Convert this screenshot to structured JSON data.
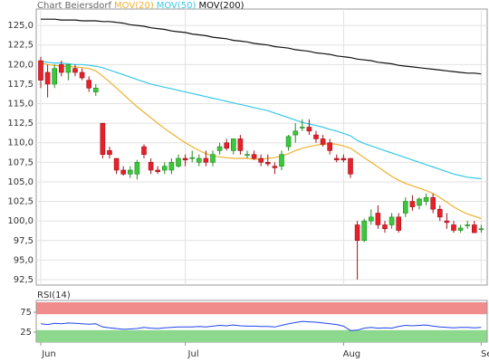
{
  "chart_data": [
    {
      "type": "candlestick",
      "title": "Chart Beiersdorf",
      "categories": [
        "Jun",
        null,
        null,
        null,
        null,
        null,
        null,
        null,
        null,
        null,
        null,
        null,
        null,
        null,
        null,
        null,
        null,
        null,
        null,
        null,
        null,
        "Jul",
        null,
        null,
        null,
        null,
        null,
        null,
        null,
        null,
        null,
        null,
        null,
        null,
        null,
        null,
        null,
        null,
        null,
        null,
        null,
        null,
        null,
        null,
        "Aug",
        null,
        null,
        null,
        null,
        null,
        null,
        null,
        null,
        null,
        null,
        null,
        null,
        null,
        null,
        null,
        null,
        null,
        null,
        null,
        "Sep"
      ],
      "open": [
        120.5,
        119,
        117.5,
        120,
        119,
        119.5,
        119,
        118,
        116.5,
        112.5,
        109,
        108,
        106.5,
        106,
        106,
        109.5,
        107.5,
        106.5,
        106.5,
        106.5,
        107,
        108,
        108,
        107.5,
        108,
        107.5,
        109,
        110,
        109,
        110.5,
        108.5,
        108.5,
        108,
        107.5,
        107,
        107,
        109.5,
        111,
        112,
        112,
        111,
        110.5,
        110,
        108,
        108,
        108,
        99.5,
        97.5,
        100,
        101,
        99.5,
        99.5,
        100.5,
        101,
        102.5,
        102,
        102.5,
        103,
        101.5,
        100,
        99.5,
        98.8,
        99.5,
        99.5,
        99
      ],
      "high": [
        121,
        120,
        120,
        120.5,
        120,
        120,
        119.5,
        118.5,
        117.5,
        112.5,
        109.5,
        108,
        107,
        107,
        107.8,
        109.8,
        108,
        107,
        107.5,
        108,
        108.5,
        108.5,
        109,
        108.5,
        109,
        109,
        110,
        110.5,
        110.5,
        111,
        109,
        109,
        108.5,
        108.5,
        107.5,
        109,
        111,
        112.5,
        113,
        113,
        111.5,
        111,
        110.5,
        108.5,
        108.5,
        108,
        100,
        100.3,
        101.5,
        102,
        100,
        101,
        101,
        103,
        103.3,
        103,
        103.5,
        103.5,
        102,
        101,
        100,
        99.5,
        100,
        100,
        99.5
      ],
      "low": [
        117,
        115.8,
        117,
        118.5,
        118,
        118.5,
        118,
        116.5,
        116,
        108,
        108,
        106,
        105.8,
        105.5,
        105.3,
        108,
        106,
        106,
        106,
        106,
        106.8,
        107,
        107.5,
        107,
        107,
        107,
        108.5,
        109,
        108.5,
        108.5,
        108,
        107.8,
        107,
        107,
        106,
        106.5,
        109,
        110,
        111.5,
        111,
        110,
        109.5,
        108.5,
        107.5,
        107.5,
        105.5,
        92.5,
        97.3,
        99.5,
        99,
        98.5,
        99,
        98.5,
        100.5,
        101.3,
        101.5,
        102,
        101,
        100,
        99,
        98.5,
        98.5,
        99,
        98.5,
        98.5
      ],
      "close": [
        118,
        117.5,
        119.5,
        119,
        120,
        119,
        118.3,
        117,
        117,
        108.5,
        108.5,
        106.5,
        106,
        106.5,
        107.5,
        108.5,
        106.5,
        106.3,
        107,
        107.5,
        108,
        107.8,
        108.1,
        108,
        107.5,
        108.5,
        109.5,
        109.3,
        110.5,
        109,
        108.5,
        108,
        107.5,
        107.3,
        106.8,
        108.5,
        110.8,
        111.5,
        112,
        111.5,
        110.5,
        109.8,
        109,
        107.8,
        107.8,
        106,
        97.5,
        100,
        100.5,
        99.5,
        99,
        100.5,
        98.8,
        102.5,
        101.8,
        102.8,
        103,
        101.5,
        100.5,
        99.8,
        98.8,
        99.1,
        99.5,
        98.5,
        99
      ],
      "up_color": "#3cc83c",
      "down_color": "#e8202a",
      "series": [
        {
          "name": "MOV(20)",
          "color": "#f0b030",
          "values": [
            120.2,
            120.0,
            119.9,
            119.8,
            119.7,
            119.7,
            119.6,
            119.5,
            119.2,
            118.5,
            117.8,
            117.0,
            116.2,
            115.4,
            114.6,
            113.9,
            113.2,
            112.5,
            111.8,
            111.2,
            110.6,
            110.0,
            109.5,
            109.0,
            108.6,
            108.3,
            108.2,
            108.1,
            108.0,
            108.0,
            108.0,
            107.9,
            107.9,
            108.0,
            108.1,
            108.3,
            108.6,
            109.0,
            109.3,
            109.5,
            109.7,
            109.8,
            109.9,
            109.8,
            109.6,
            109.3,
            108.7,
            108.1,
            107.5,
            106.9,
            106.3,
            105.7,
            105.2,
            104.8,
            104.5,
            104.2,
            103.9,
            103.5,
            103.0,
            102.4,
            101.8,
            101.3,
            100.9,
            100.6,
            100.3
          ]
        },
        {
          "name": "MOV(50)",
          "color": "#38c8e8",
          "values": [
            120.4,
            120.3,
            120.2,
            120.2,
            120.1,
            120.0,
            120.0,
            119.9,
            119.8,
            119.6,
            119.3,
            119.0,
            118.7,
            118.4,
            118.1,
            117.8,
            117.5,
            117.3,
            117.1,
            116.9,
            116.7,
            116.5,
            116.3,
            116.1,
            115.9,
            115.7,
            115.5,
            115.3,
            115.1,
            114.9,
            114.7,
            114.5,
            114.3,
            114.1,
            113.8,
            113.5,
            113.2,
            112.9,
            112.6,
            112.4,
            112.2,
            112.0,
            111.7,
            111.5,
            111.2,
            110.9,
            110.3,
            109.9,
            109.6,
            109.3,
            109.0,
            108.7,
            108.4,
            108.1,
            107.8,
            107.5,
            107.2,
            106.9,
            106.6,
            106.3,
            106.0,
            105.8,
            105.6,
            105.5,
            105.4
          ]
        },
        {
          "name": "MOV(200)",
          "color": "#111111",
          "values": [
            125.8,
            125.8,
            125.8,
            125.7,
            125.7,
            125.7,
            125.6,
            125.6,
            125.6,
            125.5,
            125.5,
            125.4,
            125.3,
            125.1,
            125.0,
            124.9,
            124.7,
            124.6,
            124.5,
            124.3,
            124.2,
            124.1,
            123.9,
            123.8,
            123.7,
            123.5,
            123.4,
            123.3,
            123.1,
            123.0,
            122.9,
            122.7,
            122.6,
            122.5,
            122.3,
            122.2,
            122.1,
            121.9,
            121.8,
            121.7,
            121.5,
            121.4,
            121.3,
            121.1,
            121.0,
            120.9,
            120.7,
            120.6,
            120.5,
            120.3,
            120.2,
            120.1,
            119.9,
            119.8,
            119.7,
            119.6,
            119.5,
            119.4,
            119.3,
            119.2,
            119.1,
            119.0,
            118.9,
            118.9,
            118.8
          ]
        }
      ],
      "ylim": [
        91.8,
        127.1
      ],
      "yticks": [
        {
          "value": 92.5,
          "label": "92,5"
        },
        {
          "value": 95,
          "label": "95,0"
        },
        {
          "value": 97.5,
          "label": "97,5"
        },
        {
          "value": 100,
          "label": "100,0"
        },
        {
          "value": 102.5,
          "label": "102,5"
        },
        {
          "value": 105,
          "label": "105,0"
        },
        {
          "value": 107.5,
          "label": "107,5"
        },
        {
          "value": 110,
          "label": "110,0"
        },
        {
          "value": 112.5,
          "label": "112,5"
        },
        {
          "value": 115,
          "label": "115,0"
        },
        {
          "value": 117.5,
          "label": "117,5"
        },
        {
          "value": 120,
          "label": "120,0"
        },
        {
          "value": 122.5,
          "label": "122,5"
        },
        {
          "value": 125,
          "label": "125,0"
        }
      ],
      "grid": true
    },
    {
      "type": "line",
      "title": "RSI(14)",
      "series": [
        {
          "color": "#2244ee",
          "values": [
            46,
            44,
            47,
            46,
            48,
            47,
            46,
            45,
            46,
            38,
            36,
            34,
            32,
            33,
            34,
            37,
            35,
            34,
            36,
            37,
            38,
            38,
            38,
            39,
            38,
            40,
            42,
            41,
            43,
            41,
            40,
            40,
            39,
            39,
            38,
            42,
            46,
            49,
            52,
            51,
            50,
            48,
            46,
            44,
            40,
            29,
            30,
            35,
            37,
            35,
            36,
            35,
            39,
            42,
            41,
            42,
            43,
            40,
            38,
            37,
            36,
            37,
            37,
            36,
            37
          ]
        }
      ],
      "bands": [
        {
          "from": 70,
          "to": 100,
          "color": "#f08c8c"
        },
        {
          "from": 0,
          "to": 30,
          "color": "#8cd88c"
        }
      ],
      "ylim": [
        0,
        100
      ],
      "yticks": [
        25,
        75
      ]
    }
  ]
}
